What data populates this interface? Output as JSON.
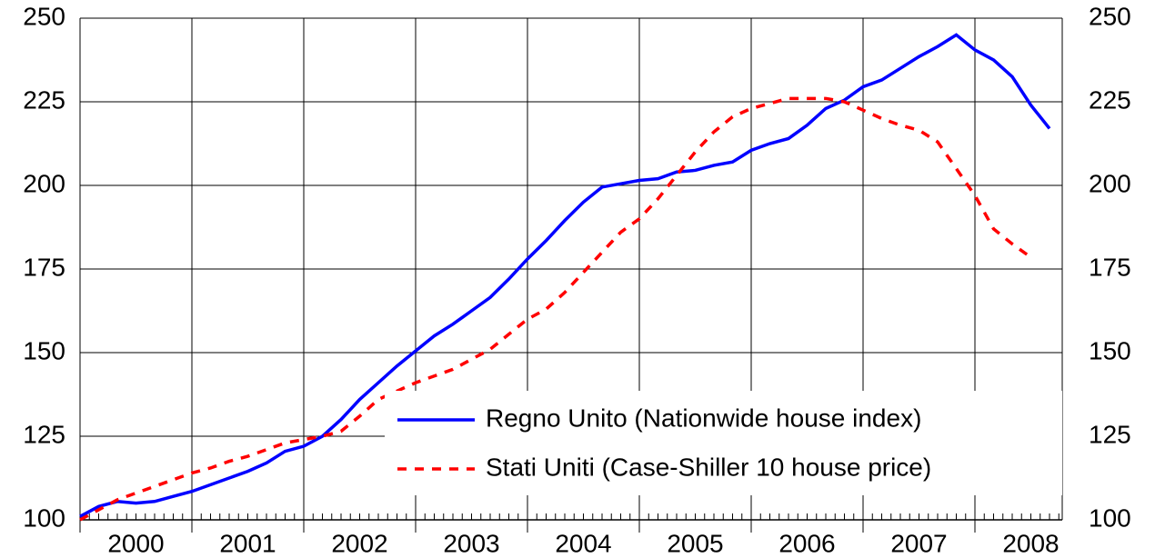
{
  "chart_data": {
    "type": "line",
    "categories": [
      null,
      null,
      null,
      "2000",
      null,
      null,
      null,
      null,
      null,
      "2001",
      null,
      null,
      null,
      null,
      null,
      "2002",
      null,
      null,
      null,
      null,
      null,
      "2003",
      null,
      null,
      null,
      null,
      null,
      "2004",
      null,
      null,
      null,
      null,
      null,
      "2005",
      null,
      null,
      null,
      null,
      null,
      "2006",
      null,
      null,
      null,
      null,
      null,
      "2007",
      null,
      null,
      null,
      null,
      null,
      "2008",
      null
    ],
    "series": [
      {
        "name": "Regno Unito (Nationwide house index)",
        "color": "#0000ff",
        "dash": false,
        "values": [
          101,
          104,
          105.5,
          105,
          105.5,
          107,
          108.5,
          110.5,
          112.5,
          114.5,
          117,
          120.5,
          122,
          125,
          130,
          136,
          141,
          146,
          150.5,
          155,
          158.5,
          162.5,
          166.5,
          172,
          178,
          183.5,
          189.5,
          195,
          199.5,
          200.5,
          201.5,
          202,
          204,
          204.5,
          206,
          207,
          210.5,
          212.5,
          214,
          218,
          223,
          225.5,
          229.5,
          231.5,
          235,
          238.5,
          241.5,
          245,
          240.5,
          237.5,
          232.5,
          224,
          217
        ]
      },
      {
        "name": "Stati Uniti (Case-Shiller 10 house price)",
        "color": "#ff0000",
        "dash": true,
        "values": [
          100,
          103,
          106,
          108,
          110,
          112,
          114,
          115.5,
          117.5,
          119,
          121,
          123,
          124,
          125,
          126.5,
          131,
          136,
          138.5,
          141,
          143,
          145,
          148,
          151,
          155.5,
          160,
          163,
          168,
          174,
          180,
          186,
          190,
          196,
          203,
          210,
          216,
          220.5,
          223,
          224.5,
          226,
          226,
          226,
          225,
          222.5,
          220,
          218,
          216.5,
          213,
          205,
          197,
          187,
          182.5,
          178.5,
          null
        ]
      }
    ],
    "ylim": [
      100,
      250
    ],
    "yticks": [
      100,
      125,
      150,
      175,
      200,
      225,
      250
    ],
    "y2lim": [
      100,
      250
    ],
    "y2ticks": [
      100,
      125,
      150,
      175,
      200,
      225,
      250
    ],
    "grid": true,
    "legend": "lower right"
  }
}
